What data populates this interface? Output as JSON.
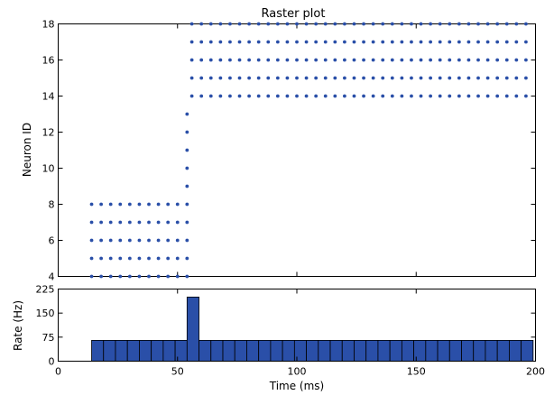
{
  "chart_data": [
    {
      "type": "scatter",
      "title": "Raster plot",
      "xlabel": "",
      "ylabel": "Neuron ID",
      "xlim": [
        0,
        200
      ],
      "ylim": [
        4,
        18
      ],
      "yticks": [
        4,
        6,
        8,
        10,
        12,
        14,
        16,
        18
      ],
      "grid": false,
      "marker_color": "#2a4fa8",
      "point_groups": [
        {
          "neurons": [
            4,
            5,
            6,
            7,
            8
          ],
          "times": [
            14,
            18,
            22,
            26,
            30,
            34,
            38,
            42,
            46,
            50,
            54
          ]
        },
        {
          "neurons": [
            9,
            10,
            11,
            12,
            13
          ],
          "times": [
            54
          ]
        },
        {
          "neurons": [
            14,
            15,
            16,
            17,
            18
          ],
          "times": [
            56,
            60,
            64,
            68,
            72,
            76,
            80,
            84,
            88,
            92,
            96,
            100,
            104,
            108,
            112,
            116,
            120,
            124,
            128,
            132,
            136,
            140,
            144,
            148,
            152,
            156,
            160,
            164,
            168,
            172,
            176,
            180,
            184,
            188,
            192,
            196
          ]
        }
      ]
    },
    {
      "type": "bar",
      "xlabel": "Time (ms)",
      "ylabel": "Rate (Hz)",
      "xlim": [
        0,
        200
      ],
      "ylim": [
        0,
        225
      ],
      "xticks": [
        0,
        50,
        100,
        150,
        200
      ],
      "yticks": [
        0,
        75,
        150,
        225
      ],
      "bin_width": 5,
      "bar_color": "#2a4fa8",
      "bar_edge_color": "#000000",
      "bins_start": [
        14,
        19,
        24,
        29,
        34,
        39,
        44,
        49,
        54,
        59,
        64,
        69,
        74,
        79,
        84,
        89,
        94,
        99,
        104,
        109,
        114,
        119,
        124,
        129,
        134,
        139,
        144,
        149,
        154,
        159,
        164,
        169,
        174,
        179,
        184,
        189,
        194
      ],
      "values": [
        65,
        65,
        65,
        65,
        65,
        65,
        65,
        65,
        200,
        65,
        65,
        65,
        65,
        65,
        65,
        65,
        65,
        65,
        65,
        65,
        65,
        65,
        65,
        65,
        65,
        65,
        65,
        65,
        65,
        65,
        65,
        65,
        65,
        65,
        65,
        65,
        65
      ]
    }
  ]
}
